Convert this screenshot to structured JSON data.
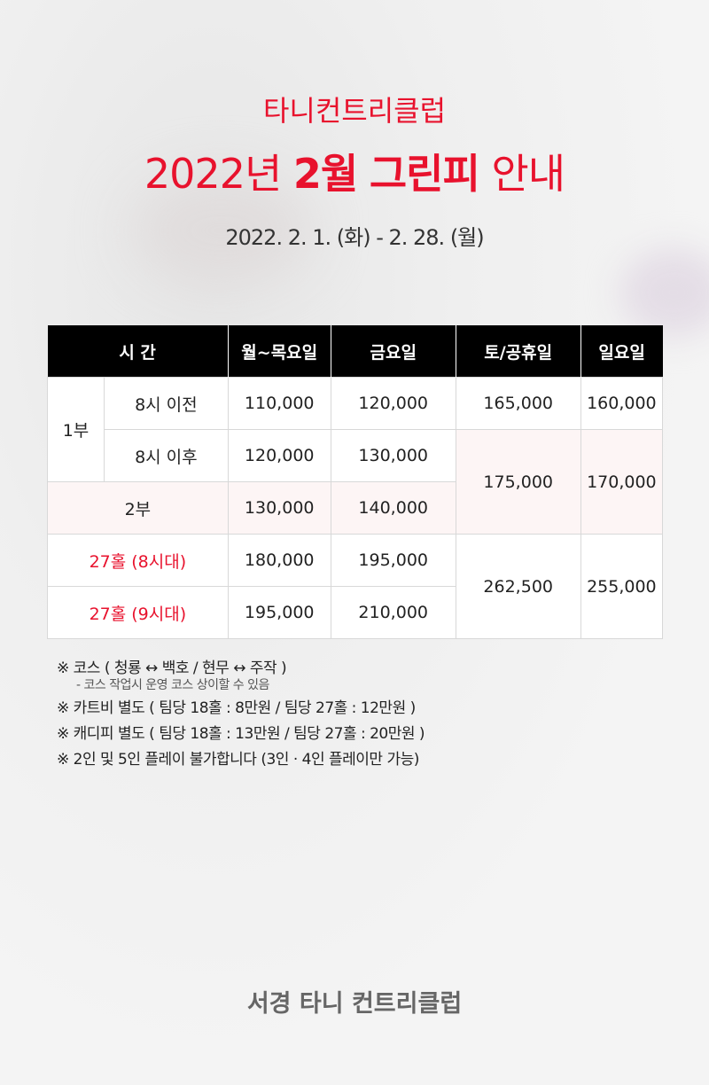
{
  "header": {
    "club": "타니컨트리클럽",
    "title_year": "2022년",
    "title_month": "2월",
    "title_fee": "그린피",
    "title_end": "안내",
    "period": "2022. 2. 1. (화) - 2. 28. (월)"
  },
  "table": {
    "headers": [
      "시 간",
      "월~목요일",
      "금요일",
      "토/공휴일",
      "일요일"
    ],
    "r1": {
      "part": "1부",
      "slot": "8시 이전",
      "mon_thu": "110,000",
      "fri": "120,000",
      "sat": "165,000",
      "sun": "160,000"
    },
    "r2": {
      "slot": "8시 이후",
      "mon_thu": "120,000",
      "fri": "130,000",
      "sat": "175,000",
      "sun": "170,000"
    },
    "r3": {
      "part": "2부",
      "mon_thu": "130,000",
      "fri": "140,000"
    },
    "r4": {
      "slot": "27홀 (8시대)",
      "mon_thu": "180,000",
      "fri": "195,000",
      "sat": "262,500",
      "sun": "255,000"
    },
    "r5": {
      "slot": "27홀 (9시대)",
      "mon_thu": "195,000",
      "fri": "210,000"
    }
  },
  "notes": [
    "※ 코스 ( 청룡 ↔ 백호 / 현무 ↔ 주작 )",
    "- 코스 작업시 운영 코스 상이할 수 있음",
    "※ 카트비 별도 ( 팀당 18홀 : 8만원 / 팀당 27홀 : 12만원 )",
    "※ 캐디피 별도 ( 팀당 18홀 : 13만원 / 팀당 27홀 : 20만원 )",
    "※ 2인 및 5인 플레이 불가합니다 (3인 · 4인 플레이만 가능)"
  ],
  "footer": "서경 타니 컨트리클럽",
  "colors": {
    "accent": "#e8122d",
    "header_bg": "#000000",
    "highlight_bg": "#fdf5f5"
  }
}
